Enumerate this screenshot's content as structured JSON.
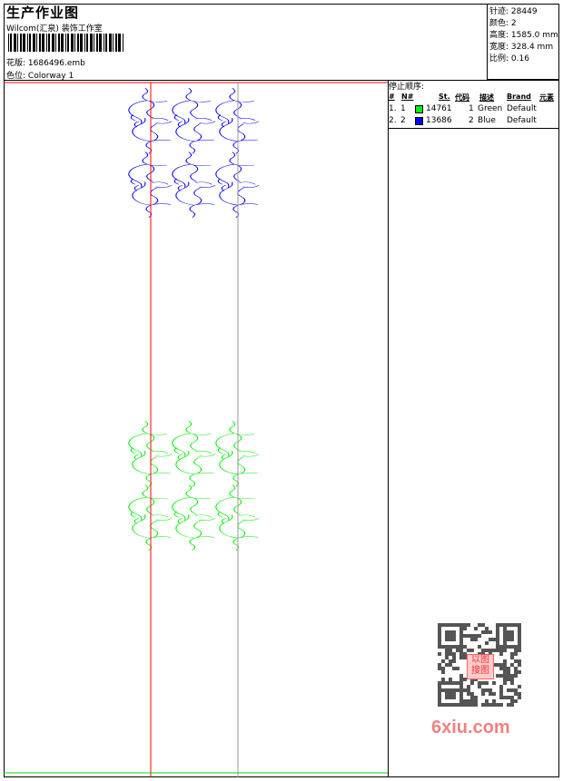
{
  "header": {
    "title": "生产作业图",
    "company": "Wilcom(汇泉) 装饰工作室",
    "design_label": "花版:",
    "design_value": "1686496.emb",
    "colorway_label": "色位:",
    "colorway_value": "Colorway 1"
  },
  "stats": [
    {
      "label": "针迹:",
      "value": "28449"
    },
    {
      "label": "颜色:",
      "value": "2"
    },
    {
      "label": "高度:",
      "value": "1585.0 mm"
    },
    {
      "label": "宽度:",
      "value": "328.4 mm"
    },
    {
      "label": "比例:",
      "value": "0.16"
    }
  ],
  "stop_sequence": {
    "title": "停止顺序:",
    "columns": [
      "#",
      "N#",
      "St.",
      "代码",
      "描述",
      "Brand",
      "元素"
    ],
    "rows": [
      {
        "idx": "1.",
        "n": "1",
        "color": "#00ee00",
        "st": "14761",
        "code": "1",
        "desc": "Green",
        "brand": "Default"
      },
      {
        "idx": "2.",
        "n": "2",
        "color": "#0000ee",
        "st": "13686",
        "code": "2",
        "desc": "Blue",
        "brand": "Default"
      }
    ]
  },
  "design": {
    "top_color": "#0000ee",
    "bottom_color": "#00ee00",
    "guide_red": "#ff0000",
    "guide_green": "#00dd00"
  },
  "watermark": {
    "text": "6xiu.com",
    "seal": "以图搜图"
  }
}
